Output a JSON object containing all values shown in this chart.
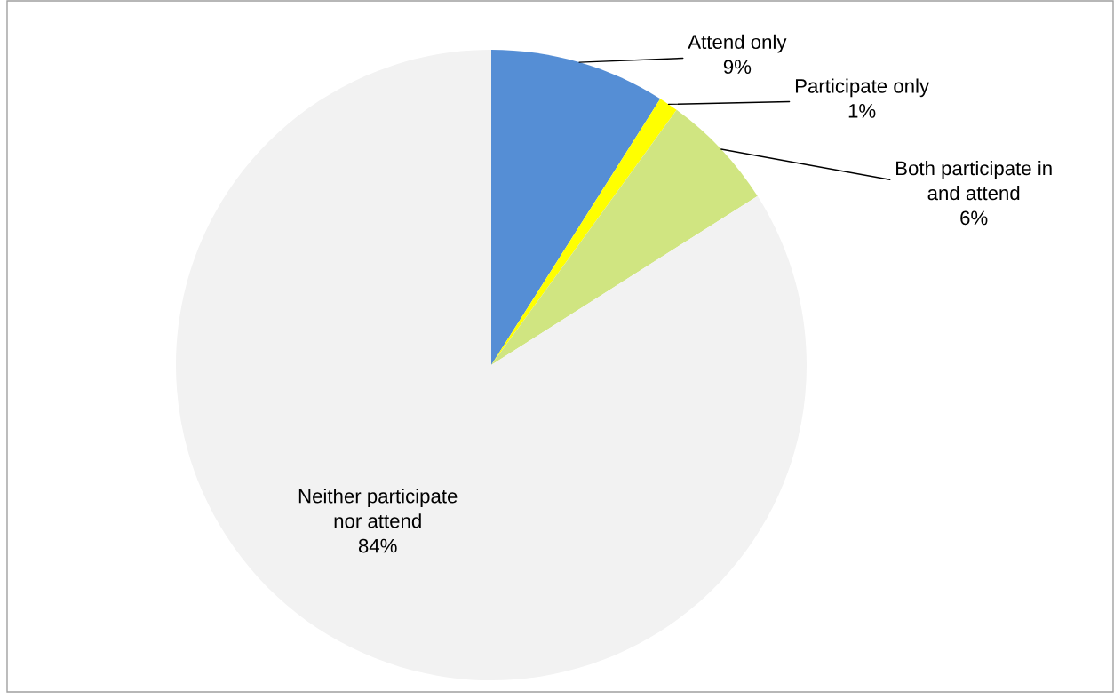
{
  "chart_data": {
    "type": "pie",
    "categories": [
      "Attend only",
      "Participate only",
      "Both participate in\nand attend",
      "Neither participate\nnor attend"
    ],
    "values": [
      9,
      1,
      6,
      84
    ],
    "colors": [
      "#558ed5",
      "#ffff00",
      "#d0e581",
      "#f2f2f2"
    ],
    "value_labels": [
      "9%",
      "1%",
      "6%",
      "84%"
    ]
  }
}
